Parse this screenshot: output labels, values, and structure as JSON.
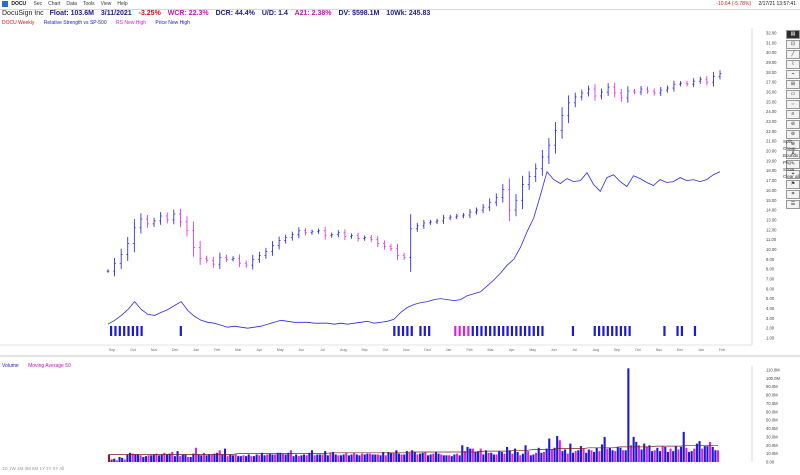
{
  "window": {
    "ticker": "DOCU",
    "menu": [
      "Sec",
      "Chart",
      "Data",
      "Tools",
      "View",
      "Help"
    ],
    "quote_change": "-10.64 (-5.78%)",
    "datetime": "2/17/21 13:57:41"
  },
  "header": {
    "company": "DocuSign Inc",
    "float": "Float: 103.6M",
    "date": "3/11/2021",
    "change": "-3.25%",
    "wcr": "WCR: 22.3%",
    "dcr": "DCR: 44.4%",
    "ud": "U/D: 1.4",
    "a21": "A21: 2.38%",
    "dv": "DV: $598.1M",
    "tenwk": "10Wk: 245.83"
  },
  "legend": {
    "items": [
      "DOCU Weekly",
      "Relative Strength vs SP-500",
      "RS New High",
      "Price New High"
    ]
  },
  "volume_legend": {
    "items": [
      "Volume",
      "Moving Average 50"
    ]
  },
  "toolbar": {
    "tools": [
      "▤",
      "⊡",
      "╱",
      "⌇",
      "⌁",
      "⊞",
      "▭",
      "⇔",
      "≡",
      "⊘",
      "⊚",
      "⊕",
      "A",
      "✎",
      "⌖",
      "⚑",
      "⌗",
      "☰"
    ],
    "labels": [
      "Split",
      "Group",
      "Bounds",
      "Pkg",
      "Show",
      "Clear all"
    ]
  },
  "status_bar": {
    "text": "1D 1W 1M 3M 6M 1Y 2Y 5Y All"
  },
  "colors": {
    "up": "#1a1ad8",
    "down": "#e020e0",
    "rs_line": "#2a2ae0",
    "ma_line": "#7a2020"
  },
  "chart_data": [
    {
      "type": "bar",
      "description_series": "weekly OHLC price bars (estimated close values)",
      "y_ticks": [
        "32.00",
        "31.00",
        "30.00",
        "29.00",
        "28.00",
        "27.00",
        "26.00",
        "25.00",
        "24.00",
        "23.00",
        "22.00",
        "21.00",
        "20.00",
        "19.00",
        "18.00",
        "17.00",
        "16.00",
        "15.00",
        "14.00",
        "13.00",
        "12.00",
        "11.00",
        "10.00",
        "9.00",
        "8.00",
        "7.00",
        "6.00",
        "5.00",
        "4.00",
        "3.00",
        "2.00",
        "1.00"
      ],
      "x_ticks": [
        "Sep",
        "Oct",
        "Nov",
        "Dec",
        "Jan",
        "Feb",
        "Mar",
        "Apr",
        "May",
        "Jun",
        "Jul",
        "Aug",
        "Sep",
        "Oct",
        "Nov",
        "Dec",
        "Jan",
        "Feb",
        "Mar",
        "Apr",
        "May",
        "Jun",
        "Jul",
        "Aug",
        "Sep",
        "Oct",
        "Nov",
        "Dec",
        "Jan",
        "Feb"
      ],
      "closes": [
        7.8,
        8.6,
        9.5,
        10.6,
        12.2,
        13.1,
        12.6,
        12.9,
        13.4,
        13.0,
        13.6,
        12.8,
        11.9,
        10.2,
        9.1,
        8.9,
        8.5,
        9.2,
        9.0,
        9.1,
        8.6,
        8.4,
        9.0,
        9.4,
        9.8,
        10.4,
        10.9,
        11.2,
        11.5,
        11.9,
        11.7,
        11.8,
        11.9,
        11.4,
        11.5,
        11.7,
        11.3,
        11.4,
        11.1,
        11.2,
        11.0,
        10.6,
        10.3,
        10.1,
        9.4,
        9.2,
        12.1,
        12.4,
        12.7,
        12.8,
        12.9,
        13.2,
        13.3,
        13.4,
        13.5,
        13.8,
        14.0,
        14.3,
        14.8,
        15.3,
        16.1,
        14.0,
        15.0,
        16.6,
        17.4,
        18.2,
        19.4,
        20.6,
        22.1,
        23.6,
        24.9,
        25.5,
        25.9,
        26.3,
        25.6,
        26.0,
        26.5,
        25.9,
        25.4,
        26.1,
        26.0,
        26.3,
        26.1,
        25.9,
        26.2,
        26.4,
        26.8,
        26.9,
        26.8,
        27.1,
        27.3,
        27.0,
        27.6,
        27.9
      ],
      "rs_line": [
        2.4,
        2.8,
        3.3,
        3.9,
        4.7,
        3.9,
        3.4,
        3.3,
        3.6,
        3.9,
        4.3,
        4.7,
        3.8,
        3.2,
        2.8,
        2.6,
        2.5,
        2.3,
        2.1,
        2.2,
        2.1,
        2.0,
        2.1,
        2.2,
        2.4,
        2.6,
        2.8,
        2.7,
        2.6,
        2.6,
        2.6,
        2.5,
        2.5,
        2.5,
        2.4,
        2.5,
        2.4,
        2.5,
        2.6,
        2.7,
        2.5,
        2.6,
        2.7,
        2.9,
        3.6,
        4.1,
        4.4,
        4.6,
        4.7,
        4.9,
        5.0,
        4.9,
        4.8,
        4.9,
        5.3,
        5.5,
        5.7,
        6.3,
        6.9,
        7.6,
        8.4,
        9.0,
        10.2,
        11.8,
        13.2,
        15.5,
        17.9,
        17.1,
        16.7,
        17.2,
        16.9,
        17.0,
        17.8,
        16.6,
        15.9,
        17.3,
        17.6,
        16.9,
        16.4,
        17.5,
        17.2,
        16.8,
        16.5,
        17.1,
        16.8,
        16.9,
        17.3,
        17.0,
        17.1,
        16.9,
        17.1,
        17.6,
        17.9
      ],
      "new_high_markers": [
        0,
        1,
        2,
        3,
        4,
        5,
        6,
        7,
        16,
        65,
        66,
        67,
        68,
        69,
        71,
        72,
        73,
        79,
        80,
        81,
        82,
        83,
        84,
        85,
        86,
        87,
        88,
        89,
        90,
        91,
        92,
        93,
        94,
        95,
        96,
        97,
        98,
        99,
        106,
        111,
        112,
        113,
        114,
        115,
        116,
        117,
        118,
        119,
        127,
        130,
        131,
        134
      ]
    },
    {
      "type": "bar",
      "description_series": "weekly volume",
      "y_ticks": [
        "110.0M",
        "100.0M",
        "90.0M",
        "80.0M",
        "70.0M",
        "60.0M",
        "50.0M",
        "40.0M",
        "30.0M",
        "20.0M",
        "10.0M",
        "0.00"
      ],
      "volumes_m": [
        9,
        3,
        4,
        2,
        6,
        5,
        3,
        9,
        11,
        10,
        9,
        9,
        8,
        6,
        7,
        8,
        8,
        9,
        10,
        8,
        9,
        11,
        9,
        10,
        12,
        7,
        13,
        7,
        9,
        9,
        6,
        6,
        10,
        17,
        9,
        8,
        11,
        8,
        9,
        9,
        10,
        11,
        14,
        9,
        16,
        7,
        9,
        8,
        9,
        7,
        7,
        8,
        7,
        9,
        7,
        7,
        9,
        8,
        11,
        8,
        9,
        10,
        9,
        9,
        11,
        11,
        10,
        9,
        11,
        14,
        7,
        9,
        7,
        8,
        9,
        8,
        11,
        14,
        8,
        9,
        9,
        9,
        13,
        8,
        11,
        12,
        9,
        8,
        8,
        9,
        11,
        8,
        9,
        11,
        9,
        8,
        10,
        9,
        10,
        10,
        9,
        9,
        9,
        8,
        12,
        8,
        12,
        11,
        11,
        14,
        10,
        9,
        9,
        13,
        11,
        14,
        12,
        9,
        10,
        11,
        12,
        8,
        9,
        10,
        12,
        10,
        9,
        8,
        8,
        8,
        7,
        9,
        10,
        8,
        20,
        13,
        18,
        16,
        16,
        12,
        13,
        16,
        9,
        14,
        11,
        11,
        9,
        9,
        13,
        12,
        10,
        18,
        14,
        10,
        16,
        12,
        8,
        10,
        20,
        13,
        8,
        9,
        11,
        17,
        11,
        12,
        16,
        28,
        15,
        17,
        31,
        26,
        13,
        15,
        10,
        22,
        11,
        13,
        14,
        19,
        16,
        11,
        15,
        14,
        12,
        17,
        13,
        21,
        30,
        16,
        17,
        14,
        13,
        18,
        17,
        14,
        14,
        112,
        20,
        30,
        24,
        20,
        15,
        22,
        18,
        20,
        13,
        14,
        17,
        13,
        19,
        18,
        12,
        16,
        13,
        19,
        15,
        18,
        36,
        17,
        12,
        13,
        16,
        22,
        25,
        16,
        19,
        19,
        24,
        18,
        14,
        14
      ],
      "ma50_m": [
        9,
        9,
        9,
        9,
        9,
        9,
        9,
        9,
        9,
        9,
        9,
        9,
        9,
        9,
        9,
        9,
        9,
        9,
        9,
        9,
        9,
        10,
        10,
        10,
        10,
        10,
        10,
        10,
        10,
        10,
        10,
        10,
        10,
        10,
        10,
        10,
        11,
        11,
        11,
        11,
        11,
        11,
        11,
        11,
        11,
        11,
        11,
        11,
        11,
        12,
        12,
        12,
        12,
        12,
        12,
        12,
        12,
        12,
        12,
        12,
        12,
        13,
        13,
        13,
        13,
        13,
        14,
        14,
        14,
        15,
        15,
        15,
        15,
        16,
        16,
        16,
        16,
        16,
        17,
        17,
        17,
        17,
        17,
        18,
        18,
        18,
        18,
        18,
        18,
        19,
        19,
        19,
        19,
        19,
        20,
        20,
        20,
        20,
        20,
        20
      ]
    }
  ]
}
